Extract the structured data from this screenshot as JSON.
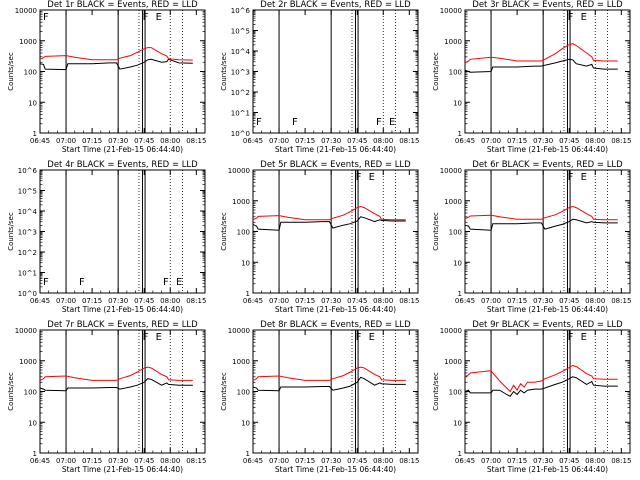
{
  "colors": {
    "events": "#000000",
    "lld": "#ff0000",
    "axes": "#000000",
    "background": "#ffffff"
  },
  "chart_data": [
    {
      "type": "line",
      "title": "Det 1r BLACK = Events, RED = LLD",
      "xlabel": "Start Time (21-Feb-15 06:44:40)",
      "ylabel": "Counts/sec",
      "yscale": "log",
      "ylim": [
        1,
        10000
      ],
      "yticks": [
        "1",
        "10",
        "100",
        "1000",
        "10000"
      ],
      "xlim": [
        0,
        95
      ],
      "xticks": [
        "06:45",
        "07:00",
        "07:15",
        "07:30",
        "07:45",
        "08:00",
        "08:15"
      ],
      "xtick_values": [
        0,
        15,
        30,
        45,
        60,
        75,
        90
      ],
      "annotations": [
        "F",
        "F",
        "E"
      ],
      "series": [
        {
          "name": "Events",
          "x": [
            0,
            2,
            3,
            15,
            16,
            30,
            40,
            44,
            46,
            52,
            56,
            60,
            62,
            64,
            70,
            73,
            74,
            80,
            88
          ],
          "y": [
            180,
            170,
            120,
            115,
            180,
            180,
            190,
            190,
            120,
            140,
            160,
            200,
            240,
            250,
            200,
            210,
            250,
            190,
            185
          ]
        },
        {
          "name": "LLD",
          "x": [
            0,
            2,
            3,
            15,
            20,
            30,
            40,
            44,
            46,
            52,
            56,
            60,
            62,
            64,
            70,
            73,
            74,
            80,
            88
          ],
          "y": [
            250,
            280,
            310,
            330,
            290,
            240,
            240,
            240,
            270,
            330,
            420,
            550,
            600,
            600,
            380,
            320,
            260,
            240,
            235
          ]
        }
      ]
    },
    {
      "type": "line",
      "title": "Det 2r BLACK = Events, RED = LLD",
      "xlabel": "Start Time (21-Feb-15 06:44:40)",
      "ylabel": "Counts/sec",
      "yscale": "log",
      "ylim": [
        1,
        1000000
      ],
      "yticks": [
        "10^0",
        "10^1",
        "10^2",
        "10^3",
        "10^4",
        "10^5",
        "10^6"
      ],
      "xlim": [
        0,
        95
      ],
      "xticks": [
        "06:45",
        "07:00",
        "07:15",
        "07:30",
        "07:45",
        "08:00",
        "08:15"
      ],
      "xtick_values": [
        0,
        15,
        30,
        45,
        60,
        75,
        90
      ],
      "annotations": [
        "F",
        "F",
        "F",
        "E"
      ],
      "series": []
    },
    {
      "type": "line",
      "title": "Det 3r BLACK = Events, RED = LLD",
      "xlabel": "Start Time (21-Feb-15 06:44:40)",
      "ylabel": "Counts/sec",
      "yscale": "log",
      "ylim": [
        1,
        10000
      ],
      "yticks": [
        "1",
        "10",
        "100",
        "1000",
        "10000"
      ],
      "xlim": [
        0,
        95
      ],
      "xticks": [
        "06:45",
        "07:00",
        "07:15",
        "07:30",
        "07:45",
        "08:00",
        "08:15"
      ],
      "xtick_values": [
        0,
        15,
        30,
        45,
        60,
        75,
        90
      ],
      "annotations": [
        "F",
        "E"
      ],
      "series": [
        {
          "name": "Events",
          "x": [
            0,
            2,
            3,
            15,
            16,
            30,
            40,
            44,
            46,
            52,
            56,
            60,
            62,
            64,
            70,
            73,
            74,
            80,
            88
          ],
          "y": [
            110,
            100,
            95,
            100,
            140,
            140,
            150,
            150,
            160,
            190,
            220,
            250,
            240,
            180,
            150,
            170,
            130,
            120,
            120
          ]
        },
        {
          "name": "LLD",
          "x": [
            0,
            2,
            3,
            15,
            20,
            30,
            40,
            44,
            46,
            52,
            56,
            60,
            62,
            64,
            70,
            73,
            74,
            80,
            88
          ],
          "y": [
            190,
            220,
            250,
            290,
            270,
            220,
            220,
            220,
            250,
            380,
            550,
            750,
            800,
            700,
            400,
            300,
            230,
            220,
            220
          ]
        }
      ]
    },
    {
      "type": "line",
      "title": "Det 4r BLACK = Events, RED = LLD",
      "xlabel": "Start Time (21-Feb-15 06:44:40)",
      "ylabel": "Counts/sec",
      "yscale": "log",
      "ylim": [
        1,
        1000000
      ],
      "yticks": [
        "10^0",
        "10^1",
        "10^2",
        "10^3",
        "10^4",
        "10^5",
        "10^6"
      ],
      "xlim": [
        0,
        95
      ],
      "xticks": [
        "06:45",
        "07:00",
        "07:15",
        "07:30",
        "07:45",
        "08:00",
        "08:15"
      ],
      "xtick_values": [
        0,
        15,
        30,
        45,
        60,
        75,
        90
      ],
      "annotations": [
        "F",
        "F",
        "F",
        "E"
      ],
      "series": []
    },
    {
      "type": "line",
      "title": "Det 5r BLACK = Events, RED = LLD",
      "xlabel": "Start Time (21-Feb-15 06:44:40)",
      "ylabel": "Counts/sec",
      "yscale": "log",
      "ylim": [
        1,
        10000
      ],
      "yticks": [
        "1",
        "10",
        "100",
        "1000",
        "10000"
      ],
      "xlim": [
        0,
        95
      ],
      "xticks": [
        "06:45",
        "07:00",
        "07:15",
        "07:30",
        "07:45",
        "08:00",
        "08:15"
      ],
      "xtick_values": [
        0,
        15,
        30,
        45,
        60,
        75,
        90
      ],
      "annotations": [
        "F",
        "E"
      ],
      "series": [
        {
          "name": "Events",
          "x": [
            0,
            2,
            3,
            15,
            16,
            30,
            40,
            44,
            46,
            52,
            56,
            60,
            62,
            64,
            70,
            73,
            74,
            80,
            88
          ],
          "y": [
            170,
            150,
            120,
            110,
            200,
            200,
            210,
            210,
            130,
            160,
            180,
            220,
            300,
            280,
            210,
            240,
            230,
            220,
            220
          ]
        },
        {
          "name": "LLD",
          "x": [
            0,
            2,
            3,
            15,
            20,
            30,
            40,
            44,
            46,
            52,
            56,
            60,
            62,
            64,
            70,
            73,
            74,
            80,
            88
          ],
          "y": [
            240,
            270,
            310,
            330,
            290,
            240,
            240,
            240,
            270,
            340,
            440,
            600,
            650,
            600,
            380,
            310,
            250,
            240,
            240
          ]
        }
      ]
    },
    {
      "type": "line",
      "title": "Det 6r BLACK = Events, RED = LLD",
      "xlabel": "Start Time (21-Feb-15 06:44:40)",
      "ylabel": "Counts/sec",
      "yscale": "log",
      "ylim": [
        1,
        10000
      ],
      "yticks": [
        "1",
        "10",
        "100",
        "1000",
        "10000"
      ],
      "xlim": [
        0,
        95
      ],
      "xticks": [
        "06:45",
        "07:00",
        "07:15",
        "07:30",
        "07:45",
        "08:00",
        "08:15"
      ],
      "xtick_values": [
        0,
        15,
        30,
        45,
        60,
        75,
        90
      ],
      "annotations": [
        "F",
        "E"
      ],
      "series": [
        {
          "name": "Events",
          "x": [
            0,
            2,
            3,
            15,
            16,
            30,
            40,
            44,
            46,
            52,
            56,
            60,
            62,
            64,
            70,
            73,
            74,
            80,
            88
          ],
          "y": [
            160,
            150,
            120,
            110,
            180,
            180,
            190,
            190,
            120,
            150,
            170,
            210,
            250,
            240,
            190,
            210,
            200,
            190,
            190
          ]
        },
        {
          "name": "LLD",
          "x": [
            0,
            2,
            3,
            15,
            20,
            30,
            40,
            44,
            46,
            52,
            56,
            60,
            62,
            64,
            70,
            73,
            74,
            80,
            88
          ],
          "y": [
            260,
            290,
            320,
            340,
            300,
            250,
            250,
            250,
            280,
            350,
            450,
            600,
            650,
            600,
            380,
            310,
            250,
            240,
            240
          ]
        }
      ]
    },
    {
      "type": "line",
      "title": "Det 7r BLACK = Events, RED = LLD",
      "xlabel": "Start Time (21-Feb-15 06:44:40)",
      "ylabel": "Counts/sec",
      "yscale": "log",
      "ylim": [
        1,
        10000
      ],
      "yticks": [
        "1",
        "10",
        "100",
        "1000",
        "10000"
      ],
      "xlim": [
        0,
        95
      ],
      "xticks": [
        "06:45",
        "07:00",
        "07:15",
        "07:30",
        "07:45",
        "08:00",
        "08:15"
      ],
      "xtick_values": [
        0,
        15,
        30,
        45,
        60,
        75,
        90
      ],
      "annotations": [
        "F",
        "E"
      ],
      "series": [
        {
          "name": "Events",
          "x": [
            0,
            2,
            3,
            15,
            16,
            30,
            40,
            44,
            46,
            52,
            56,
            60,
            62,
            64,
            70,
            73,
            74,
            80,
            88
          ],
          "y": [
            130,
            120,
            110,
            105,
            130,
            130,
            135,
            135,
            120,
            140,
            160,
            200,
            260,
            250,
            160,
            190,
            170,
            160,
            160
          ]
        },
        {
          "name": "LLD",
          "x": [
            0,
            2,
            3,
            15,
            20,
            30,
            40,
            44,
            46,
            52,
            56,
            60,
            62,
            64,
            70,
            73,
            74,
            80,
            88
          ],
          "y": [
            230,
            260,
            300,
            320,
            280,
            230,
            230,
            230,
            260,
            330,
            430,
            580,
            620,
            580,
            360,
            300,
            240,
            230,
            230
          ]
        }
      ]
    },
    {
      "type": "line",
      "title": "Det 8r BLACK = Events, RED = LLD",
      "xlabel": "Start Time (21-Feb-15 06:44:40)",
      "ylabel": "Counts/sec",
      "yscale": "log",
      "ylim": [
        1,
        10000
      ],
      "yticks": [
        "1",
        "10",
        "100",
        "1000",
        "10000"
      ],
      "xlim": [
        0,
        95
      ],
      "xticks": [
        "06:45",
        "07:00",
        "07:15",
        "07:30",
        "07:45",
        "08:00",
        "08:15"
      ],
      "xtick_values": [
        0,
        15,
        30,
        45,
        60,
        75,
        90
      ],
      "annotations": [
        "F",
        "E"
      ],
      "series": [
        {
          "name": "Events",
          "x": [
            0,
            2,
            3,
            15,
            16,
            30,
            40,
            44,
            46,
            52,
            56,
            60,
            62,
            64,
            70,
            73,
            74,
            80,
            88
          ],
          "y": [
            140,
            130,
            110,
            105,
            140,
            140,
            145,
            145,
            110,
            130,
            150,
            200,
            290,
            260,
            160,
            190,
            180,
            170,
            170
          ]
        },
        {
          "name": "LLD",
          "x": [
            0,
            2,
            3,
            15,
            20,
            30,
            40,
            44,
            46,
            52,
            56,
            60,
            62,
            64,
            70,
            73,
            74,
            80,
            88
          ],
          "y": [
            230,
            260,
            300,
            320,
            280,
            230,
            230,
            230,
            260,
            330,
            430,
            580,
            620,
            580,
            360,
            300,
            240,
            230,
            230
          ]
        }
      ]
    },
    {
      "type": "line",
      "title": "Det 9r BLACK = Events, RED = LLD",
      "xlabel": "Start Time (21-Feb-15 06:44:40)",
      "ylabel": "Counts/sec",
      "yscale": "log",
      "ylim": [
        1,
        10000
      ],
      "yticks": [
        "1",
        "10",
        "100",
        "1000",
        "10000"
      ],
      "xlim": [
        0,
        95
      ],
      "xticks": [
        "06:45",
        "07:00",
        "07:15",
        "07:30",
        "07:45",
        "08:00",
        "08:15"
      ],
      "xtick_values": [
        0,
        15,
        30,
        45,
        60,
        75,
        90
      ],
      "annotations": [
        "F",
        "E"
      ],
      "series": [
        {
          "name": "Events",
          "x": [
            0,
            2,
            3,
            15,
            16,
            20,
            24,
            26,
            28,
            30,
            32,
            34,
            36,
            40,
            44,
            46,
            52,
            56,
            60,
            62,
            64,
            70,
            73,
            74,
            80,
            88
          ],
          "y": [
            100,
            110,
            90,
            90,
            110,
            110,
            80,
            70,
            100,
            80,
            110,
            90,
            110,
            120,
            120,
            130,
            170,
            200,
            260,
            300,
            280,
            170,
            210,
            160,
            150,
            150
          ]
        },
        {
          "name": "LLD",
          "x": [
            0,
            2,
            3,
            15,
            16,
            20,
            24,
            26,
            28,
            30,
            32,
            34,
            36,
            40,
            44,
            46,
            52,
            56,
            60,
            62,
            64,
            70,
            73,
            74,
            80,
            88
          ],
          "y": [
            300,
            350,
            400,
            480,
            400,
            220,
            130,
            100,
            160,
            110,
            180,
            140,
            200,
            200,
            220,
            260,
            350,
            450,
            600,
            700,
            650,
            380,
            320,
            260,
            250,
            250
          ]
        }
      ]
    }
  ]
}
